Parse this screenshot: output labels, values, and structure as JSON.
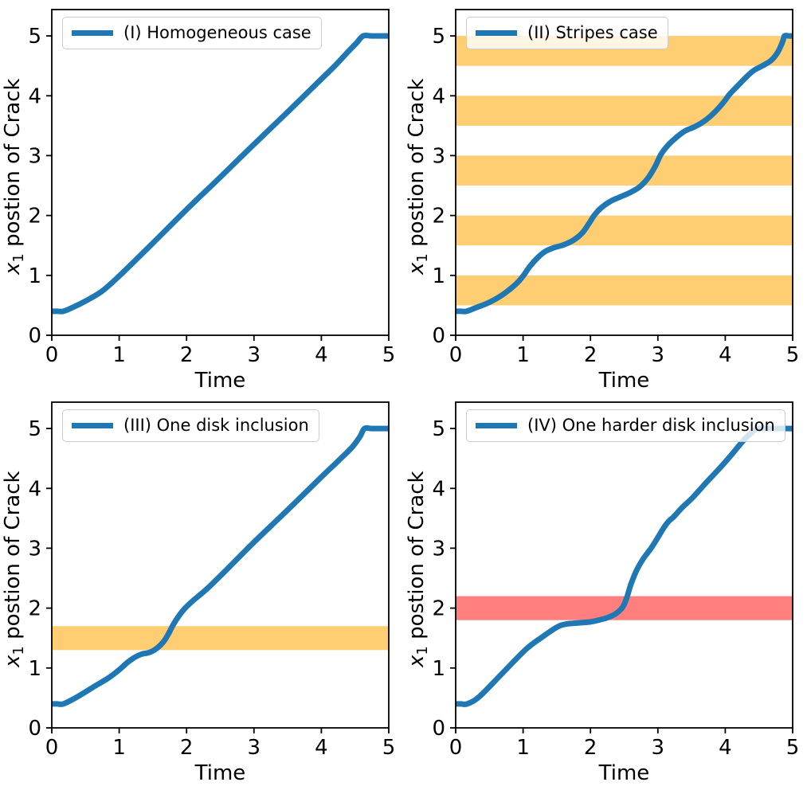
{
  "figure": {
    "background": "#ffffff",
    "description": "2x2 grid of crack-propagation plots"
  },
  "chart_data": [
    {
      "type": "line",
      "legend": "(I) Homogeneous case",
      "xlabel": "Time",
      "ylabel": {
        "var": "x",
        "sub": "1",
        "rest": " postion of Crack"
      },
      "xlim": [
        0,
        5
      ],
      "ylim": [
        0,
        5.44
      ],
      "xticks": [
        0,
        1,
        2,
        3,
        4,
        5
      ],
      "yticks": [
        0,
        1,
        2,
        3,
        4,
        5
      ],
      "grid": false,
      "legend_position": "upper-left",
      "line_color": "#1f77b4",
      "line_width": 7,
      "bands": [],
      "points": [
        [
          0,
          0.4
        ],
        [
          0.08,
          0.4
        ],
        [
          0.17,
          0.4
        ],
        [
          0.3,
          0.46
        ],
        [
          0.5,
          0.57
        ],
        [
          0.75,
          0.74
        ],
        [
          1.0,
          0.99
        ],
        [
          1.5,
          1.54
        ],
        [
          2.0,
          2.1
        ],
        [
          2.5,
          2.64
        ],
        [
          3.0,
          3.19
        ],
        [
          3.5,
          3.73
        ],
        [
          4.0,
          4.28
        ],
        [
          4.2,
          4.5
        ],
        [
          4.4,
          4.74
        ],
        [
          4.52,
          4.88
        ],
        [
          4.62,
          5.0
        ],
        [
          4.75,
          5.0
        ],
        [
          5.0,
          5.0
        ]
      ]
    },
    {
      "type": "line",
      "legend": "(II) Stripes case",
      "xlabel": "Time",
      "ylabel": {
        "var": "x",
        "sub": "1",
        "rest": " postion of Crack"
      },
      "xlim": [
        0,
        5
      ],
      "ylim": [
        0,
        5.44
      ],
      "xticks": [
        0,
        1,
        2,
        3,
        4,
        5
      ],
      "yticks": [
        0,
        1,
        2,
        3,
        4,
        5
      ],
      "grid": false,
      "legend_position": "upper-left",
      "line_color": "#1f77b4",
      "line_width": 7,
      "bands": [
        {
          "ymin": 0.5,
          "ymax": 1.0,
          "color": "#ffa500",
          "alpha": 0.55
        },
        {
          "ymin": 1.5,
          "ymax": 2.0,
          "color": "#ffa500",
          "alpha": 0.55
        },
        {
          "ymin": 2.5,
          "ymax": 3.0,
          "color": "#ffa500",
          "alpha": 0.55
        },
        {
          "ymin": 3.5,
          "ymax": 4.0,
          "color": "#ffa500",
          "alpha": 0.55
        },
        {
          "ymin": 4.5,
          "ymax": 5.0,
          "color": "#ffa500",
          "alpha": 0.55
        }
      ],
      "points": [
        [
          0,
          0.4
        ],
        [
          0.08,
          0.4
        ],
        [
          0.16,
          0.4
        ],
        [
          0.3,
          0.46
        ],
        [
          0.5,
          0.55
        ],
        [
          0.7,
          0.68
        ],
        [
          0.9,
          0.86
        ],
        [
          1.0,
          0.99
        ],
        [
          1.1,
          1.15
        ],
        [
          1.22,
          1.3
        ],
        [
          1.33,
          1.4
        ],
        [
          1.45,
          1.46
        ],
        [
          1.6,
          1.51
        ],
        [
          1.75,
          1.59
        ],
        [
          1.88,
          1.71
        ],
        [
          1.98,
          1.87
        ],
        [
          2.06,
          2.01
        ],
        [
          2.16,
          2.13
        ],
        [
          2.3,
          2.24
        ],
        [
          2.44,
          2.31
        ],
        [
          2.58,
          2.38
        ],
        [
          2.72,
          2.47
        ],
        [
          2.85,
          2.62
        ],
        [
          2.96,
          2.82
        ],
        [
          3.04,
          3.01
        ],
        [
          3.14,
          3.16
        ],
        [
          3.27,
          3.3
        ],
        [
          3.4,
          3.41
        ],
        [
          3.54,
          3.48
        ],
        [
          3.68,
          3.57
        ],
        [
          3.82,
          3.7
        ],
        [
          3.96,
          3.87
        ],
        [
          4.06,
          4.02
        ],
        [
          4.17,
          4.15
        ],
        [
          4.3,
          4.3
        ],
        [
          4.42,
          4.42
        ],
        [
          4.55,
          4.5
        ],
        [
          4.68,
          4.59
        ],
        [
          4.78,
          4.73
        ],
        [
          4.85,
          4.9
        ],
        [
          4.88,
          5.0
        ],
        [
          4.94,
          5.0
        ],
        [
          5.0,
          5.0
        ]
      ]
    },
    {
      "type": "line",
      "legend": "(III) One disk inclusion",
      "xlabel": "Time",
      "ylabel": {
        "var": "x",
        "sub": "1",
        "rest": " postion of Crack"
      },
      "xlim": [
        0,
        5
      ],
      "ylim": [
        0,
        5.44
      ],
      "xticks": [
        0,
        1,
        2,
        3,
        4,
        5
      ],
      "yticks": [
        0,
        1,
        2,
        3,
        4,
        5
      ],
      "grid": false,
      "legend_position": "upper-left",
      "line_color": "#1f77b4",
      "line_width": 7,
      "bands": [
        {
          "ymin": 1.3,
          "ymax": 1.7,
          "color": "#ffa500",
          "alpha": 0.55
        }
      ],
      "points": [
        [
          0,
          0.4
        ],
        [
          0.08,
          0.4
        ],
        [
          0.17,
          0.4
        ],
        [
          0.35,
          0.5
        ],
        [
          0.6,
          0.67
        ],
        [
          0.85,
          0.84
        ],
        [
          1.0,
          0.97
        ],
        [
          1.12,
          1.09
        ],
        [
          1.22,
          1.17
        ],
        [
          1.33,
          1.23
        ],
        [
          1.45,
          1.26
        ],
        [
          1.56,
          1.33
        ],
        [
          1.66,
          1.44
        ],
        [
          1.73,
          1.57
        ],
        [
          1.8,
          1.72
        ],
        [
          1.88,
          1.86
        ],
        [
          1.97,
          1.99
        ],
        [
          2.1,
          2.13
        ],
        [
          2.3,
          2.32
        ],
        [
          2.6,
          2.65
        ],
        [
          3.0,
          3.1
        ],
        [
          3.5,
          3.64
        ],
        [
          4.0,
          4.19
        ],
        [
          4.25,
          4.46
        ],
        [
          4.45,
          4.68
        ],
        [
          4.57,
          4.86
        ],
        [
          4.64,
          5.0
        ],
        [
          4.75,
          5.0
        ],
        [
          5.0,
          5.0
        ]
      ]
    },
    {
      "type": "line",
      "legend": "(IV) One harder disk inclusion",
      "xlabel": "Time",
      "ylabel": {
        "var": "x",
        "sub": "1",
        "rest": " postion of Crack"
      },
      "xlim": [
        0,
        5
      ],
      "ylim": [
        0,
        5.44
      ],
      "xticks": [
        0,
        1,
        2,
        3,
        4,
        5
      ],
      "yticks": [
        0,
        1,
        2,
        3,
        4,
        5
      ],
      "grid": false,
      "legend_position": "upper-left",
      "line_color": "#1f77b4",
      "line_width": 7,
      "bands": [
        {
          "ymin": 1.8,
          "ymax": 2.2,
          "color": "#ff0000",
          "alpha": 0.5
        }
      ],
      "points": [
        [
          0,
          0.4
        ],
        [
          0.08,
          0.4
        ],
        [
          0.17,
          0.4
        ],
        [
          0.35,
          0.52
        ],
        [
          0.7,
          0.92
        ],
        [
          1.05,
          1.32
        ],
        [
          1.3,
          1.53
        ],
        [
          1.5,
          1.68
        ],
        [
          1.62,
          1.73
        ],
        [
          1.8,
          1.75
        ],
        [
          2.0,
          1.77
        ],
        [
          2.12,
          1.8
        ],
        [
          2.25,
          1.84
        ],
        [
          2.38,
          1.91
        ],
        [
          2.48,
          2.02
        ],
        [
          2.54,
          2.18
        ],
        [
          2.6,
          2.4
        ],
        [
          2.68,
          2.62
        ],
        [
          2.78,
          2.82
        ],
        [
          2.9,
          3.0
        ],
        [
          3.0,
          3.18
        ],
        [
          3.08,
          3.33
        ],
        [
          3.16,
          3.45
        ],
        [
          3.24,
          3.53
        ],
        [
          3.36,
          3.68
        ],
        [
          3.52,
          3.85
        ],
        [
          3.72,
          4.1
        ],
        [
          3.92,
          4.34
        ],
        [
          4.12,
          4.6
        ],
        [
          4.27,
          4.8
        ],
        [
          4.4,
          4.94
        ],
        [
          4.47,
          5.0
        ],
        [
          4.6,
          5.0
        ],
        [
          5.0,
          5.0
        ]
      ]
    }
  ]
}
